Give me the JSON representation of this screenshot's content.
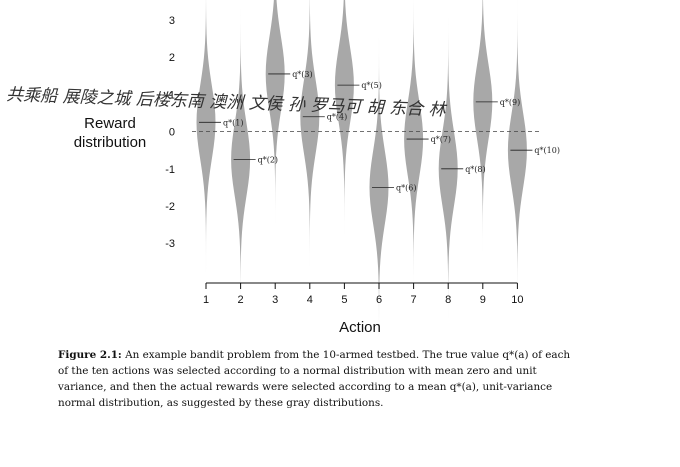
{
  "chart_data": {
    "type": "violin",
    "x": [
      1,
      2,
      3,
      4,
      5,
      6,
      7,
      8,
      9,
      10
    ],
    "xlabel": "Action",
    "ylabel_lines": [
      "Reward",
      "distribution"
    ],
    "yticks": [
      3,
      2,
      1,
      0,
      -1,
      -2,
      -3
    ],
    "xlim": [
      0.5,
      10.5
    ],
    "ylim": [
      -4,
      3.5
    ],
    "zero_line": "dashed",
    "violin_color": "#a8a8a8",
    "series": [
      {
        "means": [
          0.25,
          -0.75,
          1.55,
          0.4,
          1.25,
          -1.5,
          -0.2,
          -1.0,
          0.8,
          -0.5
        ],
        "labels": [
          "q*(1)",
          "q*(2)",
          "q*(3)",
          "q*(4)",
          "q*(5)",
          "q*(6)",
          "q*(7)",
          "q*(8)",
          "q*(9)",
          "q*(10)"
        ]
      }
    ]
  },
  "handwriting": "共乘船 展陵之城 后楼东南 澳洲 文侯 孙 罗马可 胡 东合 林",
  "caption": {
    "label": "Figure 2.1:",
    "text": "An example bandit problem from the 10-armed testbed. The true value q*(a) of each of the ten actions was selected according to a normal distribution with mean zero and unit variance, and then the actual rewards were selected according to a mean q*(a), unit-variance normal distribution, as suggested by these gray distributions."
  }
}
